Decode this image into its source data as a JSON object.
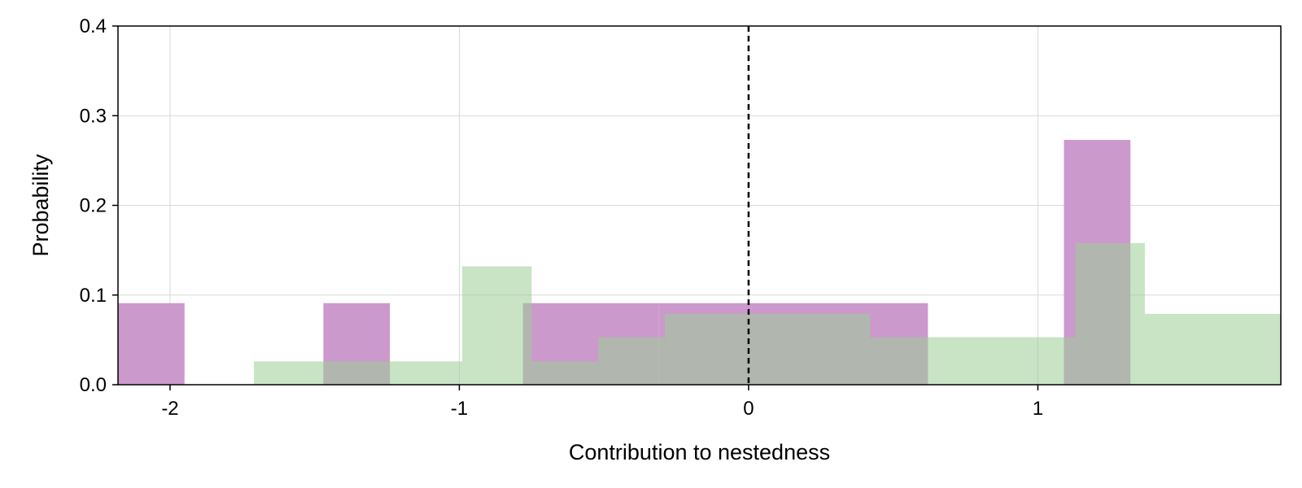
{
  "chart_data": {
    "type": "bar",
    "xlabel": "Contribution to nestedness",
    "ylabel": "Probability",
    "xlim": [
      -2.18,
      1.84
    ],
    "ylim": [
      0,
      0.4
    ],
    "xticks": [
      -2,
      -1,
      0,
      1
    ],
    "xtick_labels": [
      "-2",
      "-1",
      "0",
      "1"
    ],
    "yticks": [
      0,
      0.1,
      0.2,
      0.3,
      0.4
    ],
    "ytick_labels": [
      "0.0",
      "0.1",
      "0.2",
      "0.3",
      "0.4"
    ],
    "grid": true,
    "reference_line": {
      "x": 0,
      "style": "dashed"
    },
    "series": [
      {
        "color": "#cc99cc",
        "bins": [
          {
            "x0": -2.18,
            "x1": -1.95,
            "value": 0.091
          },
          {
            "x0": -1.47,
            "x1": -1.24,
            "value": 0.091
          },
          {
            "x0": -0.78,
            "x1": -0.31,
            "value": 0.091
          },
          {
            "x0": -0.31,
            "x1": 0.62,
            "value": 0.091
          },
          {
            "x0": 1.09,
            "x1": 1.32,
            "value": 0.273
          }
        ]
      },
      {
        "color": "#9acd96",
        "bins": [
          {
            "x0": -1.71,
            "x1": -0.99,
            "value": 0.026
          },
          {
            "x0": -0.99,
            "x1": -0.75,
            "value": 0.132
          },
          {
            "x0": -0.75,
            "x1": -0.52,
            "value": 0.026
          },
          {
            "x0": -0.52,
            "x1": -0.29,
            "value": 0.053
          },
          {
            "x0": -0.29,
            "x1": 0.42,
            "value": 0.079
          },
          {
            "x0": 0.42,
            "x1": 1.13,
            "value": 0.053
          },
          {
            "x0": 1.13,
            "x1": 1.37,
            "value": 0.158
          },
          {
            "x0": 1.37,
            "x1": 1.84,
            "value": 0.079
          }
        ]
      }
    ]
  }
}
